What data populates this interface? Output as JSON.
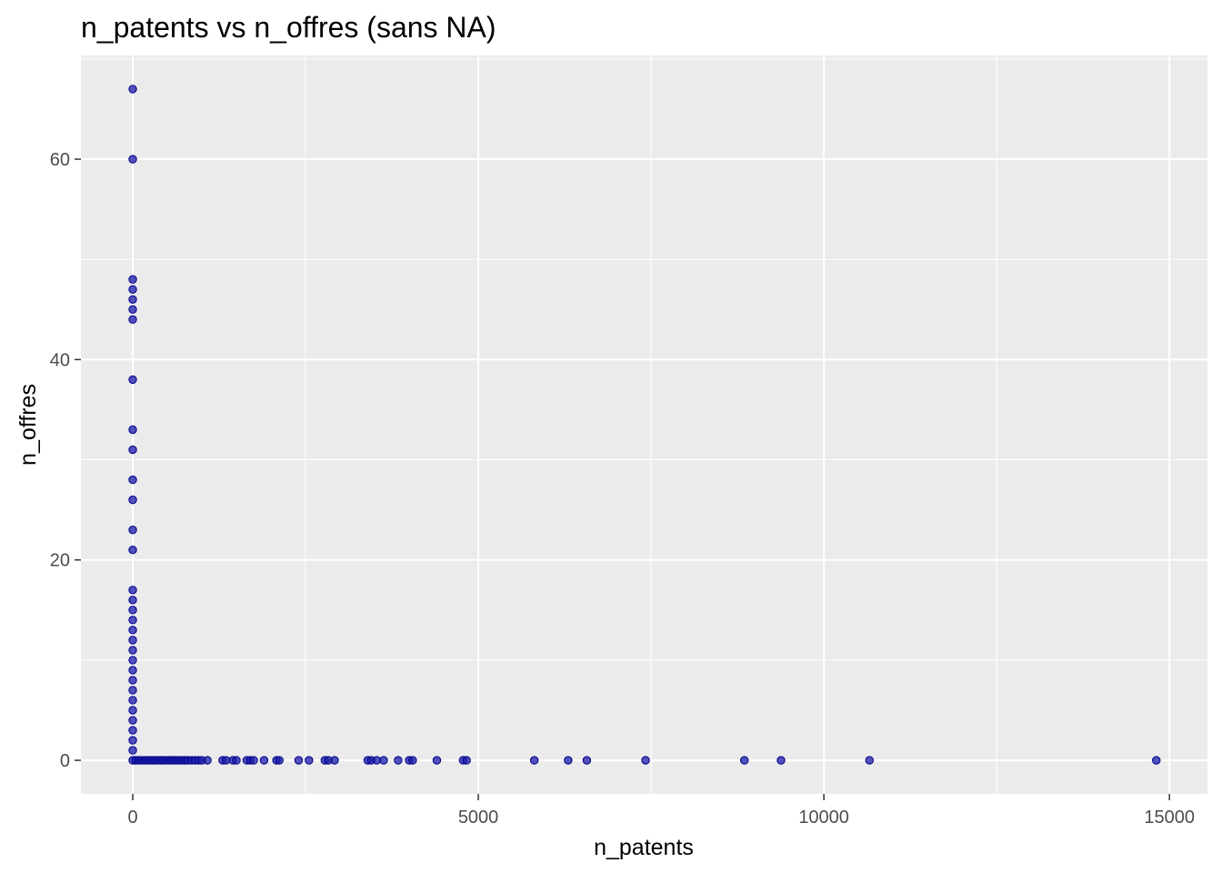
{
  "chart_data": {
    "type": "scatter",
    "title": "n_patents vs n_offres (sans NA)",
    "xlabel": "n_patents",
    "ylabel": "n_offres",
    "xlim": [
      -750,
      15550
    ],
    "ylim": [
      -3.35,
      70.35
    ],
    "x_ticks": [
      0,
      5000,
      10000,
      15000
    ],
    "x_tick_labels": [
      "0",
      "5000",
      "10000",
      "15000"
    ],
    "y_ticks": [
      0,
      20,
      40,
      60
    ],
    "y_tick_labels": [
      "0",
      "20",
      "40",
      "60"
    ],
    "grid": true,
    "legend": "none",
    "panel_color": "#ebebeb",
    "point_fill": "#1a1aa8",
    "point_stroke": "#00008b",
    "points": [
      {
        "x": 0,
        "y": 67
      },
      {
        "x": 0,
        "y": 60
      },
      {
        "x": 0,
        "y": 48
      },
      {
        "x": 0,
        "y": 47
      },
      {
        "x": 0,
        "y": 46
      },
      {
        "x": 0,
        "y": 45
      },
      {
        "x": 0,
        "y": 44
      },
      {
        "x": 0,
        "y": 38
      },
      {
        "x": 0,
        "y": 33
      },
      {
        "x": 0,
        "y": 31
      },
      {
        "x": 0,
        "y": 28
      },
      {
        "x": 0,
        "y": 26
      },
      {
        "x": 0,
        "y": 23
      },
      {
        "x": 0,
        "y": 21
      },
      {
        "x": 0,
        "y": 17
      },
      {
        "x": 0,
        "y": 16
      },
      {
        "x": 0,
        "y": 15
      },
      {
        "x": 0,
        "y": 14
      },
      {
        "x": 0,
        "y": 13
      },
      {
        "x": 0,
        "y": 12
      },
      {
        "x": 0,
        "y": 11
      },
      {
        "x": 0,
        "y": 10
      },
      {
        "x": 0,
        "y": 9
      },
      {
        "x": 0,
        "y": 8
      },
      {
        "x": 0,
        "y": 7
      },
      {
        "x": 0,
        "y": 6
      },
      {
        "x": 0,
        "y": 5
      },
      {
        "x": 0,
        "y": 4
      },
      {
        "x": 0,
        "y": 3
      },
      {
        "x": 0,
        "y": 2
      },
      {
        "x": 0,
        "y": 1
      },
      {
        "x": 0,
        "y": 0
      },
      {
        "x": 40,
        "y": 0
      },
      {
        "x": 80,
        "y": 0
      },
      {
        "x": 120,
        "y": 0
      },
      {
        "x": 160,
        "y": 0
      },
      {
        "x": 200,
        "y": 0
      },
      {
        "x": 240,
        "y": 0
      },
      {
        "x": 280,
        "y": 0
      },
      {
        "x": 320,
        "y": 0
      },
      {
        "x": 360,
        "y": 0
      },
      {
        "x": 400,
        "y": 0
      },
      {
        "x": 440,
        "y": 0
      },
      {
        "x": 480,
        "y": 0
      },
      {
        "x": 520,
        "y": 0
      },
      {
        "x": 560,
        "y": 0
      },
      {
        "x": 600,
        "y": 0
      },
      {
        "x": 640,
        "y": 0
      },
      {
        "x": 680,
        "y": 0
      },
      {
        "x": 720,
        "y": 0
      },
      {
        "x": 760,
        "y": 0
      },
      {
        "x": 800,
        "y": 0
      },
      {
        "x": 850,
        "y": 0
      },
      {
        "x": 900,
        "y": 0
      },
      {
        "x": 950,
        "y": 0
      },
      {
        "x": 1000,
        "y": 0
      },
      {
        "x": 1080,
        "y": 0
      },
      {
        "x": 1300,
        "y": 0
      },
      {
        "x": 1350,
        "y": 0
      },
      {
        "x": 1450,
        "y": 0
      },
      {
        "x": 1500,
        "y": 0
      },
      {
        "x": 1650,
        "y": 0
      },
      {
        "x": 1700,
        "y": 0
      },
      {
        "x": 1750,
        "y": 0
      },
      {
        "x": 1900,
        "y": 0
      },
      {
        "x": 2080,
        "y": 0
      },
      {
        "x": 2120,
        "y": 0
      },
      {
        "x": 2400,
        "y": 0
      },
      {
        "x": 2550,
        "y": 0
      },
      {
        "x": 2780,
        "y": 0
      },
      {
        "x": 2830,
        "y": 0
      },
      {
        "x": 2920,
        "y": 0
      },
      {
        "x": 3400,
        "y": 0
      },
      {
        "x": 3450,
        "y": 0
      },
      {
        "x": 3530,
        "y": 0
      },
      {
        "x": 3630,
        "y": 0
      },
      {
        "x": 3840,
        "y": 0
      },
      {
        "x": 4000,
        "y": 0
      },
      {
        "x": 4050,
        "y": 0
      },
      {
        "x": 4400,
        "y": 0
      },
      {
        "x": 4780,
        "y": 0
      },
      {
        "x": 4830,
        "y": 0
      },
      {
        "x": 5810,
        "y": 0
      },
      {
        "x": 6300,
        "y": 0
      },
      {
        "x": 6570,
        "y": 0
      },
      {
        "x": 7420,
        "y": 0
      },
      {
        "x": 8850,
        "y": 0
      },
      {
        "x": 9380,
        "y": 0
      },
      {
        "x": 10660,
        "y": 0
      },
      {
        "x": 14810,
        "y": 0
      }
    ]
  }
}
